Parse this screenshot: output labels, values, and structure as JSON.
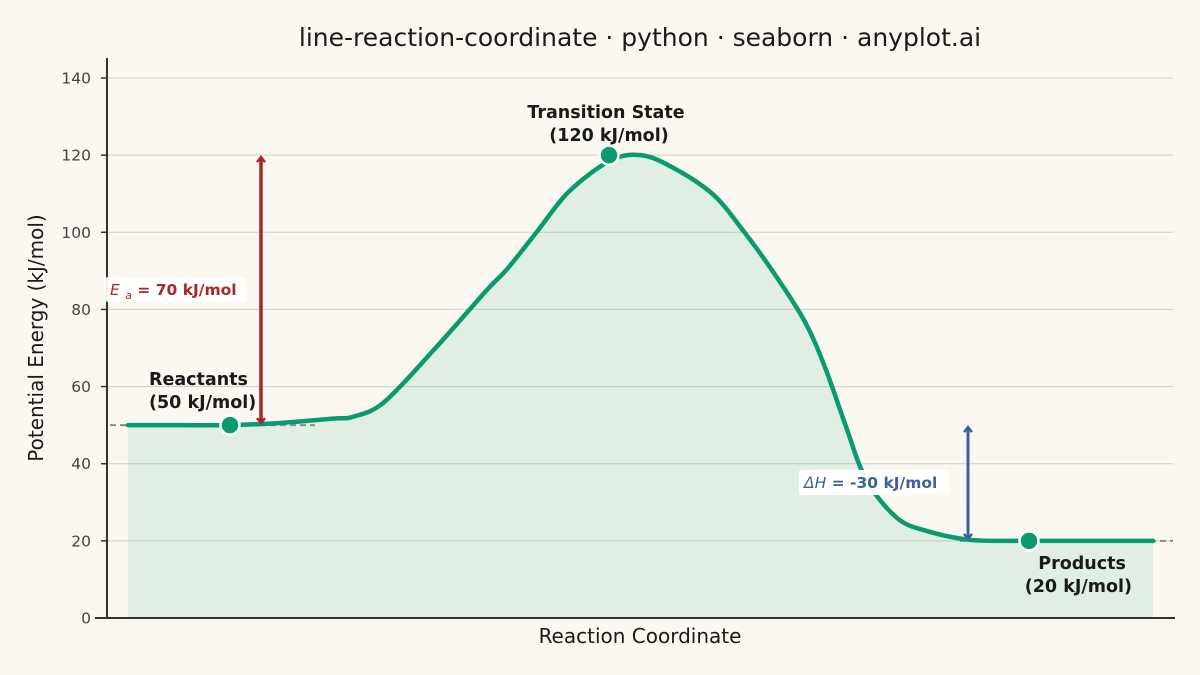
{
  "chart_data": {
    "type": "line",
    "title": "line-reaction-coordinate · python · seaborn · anyplot.ai",
    "xlabel": "Reaction Coordinate",
    "ylabel": "Potential Energy (kJ/mol)",
    "ylim": [
      0,
      145
    ],
    "yticks": [
      "0",
      "20",
      "40",
      "60",
      "80",
      "100",
      "120",
      "140"
    ],
    "grid": true,
    "series": [
      {
        "x": [
          0.0,
          0.05,
          0.1,
          0.15,
          0.2,
          0.22,
          0.25,
          0.3,
          0.35,
          0.37,
          0.4,
          0.43,
          0.47,
          0.5,
          0.53,
          0.57,
          0.6,
          0.63,
          0.66,
          0.68,
          0.7,
          0.72,
          0.75,
          0.78,
          0.82,
          0.86,
          0.9,
          0.95,
          1.0
        ],
        "values": [
          50,
          50,
          50,
          50.6,
          51.7,
          52.2,
          56,
          70,
          85,
          90.5,
          100.5,
          110.5,
          118.5,
          120,
          117,
          110,
          100.5,
          89.5,
          77,
          65,
          50,
          36,
          26,
          22.5,
          20.3,
          20,
          20,
          20,
          20
        ],
        "color": "#0A9A6F"
      }
    ],
    "points": [
      {
        "name": "Reactants",
        "x": 0.1,
        "y": 50
      },
      {
        "name": "Transition State",
        "x": 0.47,
        "y": 120
      },
      {
        "name": "Products",
        "x": 0.86,
        "y": 20
      }
    ],
    "reference_levels": [
      50,
      20
    ],
    "arrows": [
      {
        "name": "activation-energy",
        "x": 0.127,
        "from": 50,
        "to": 120,
        "color": "#A6282D"
      },
      {
        "name": "enthalpy-change",
        "x": 0.8,
        "from": 50,
        "to": 20,
        "color": "#3F5F9E"
      }
    ],
    "colors": {
      "line": "#0A9A6F",
      "fill": "#0A9A6F",
      "ea": "#A6282D",
      "dh": "#3F5F9E",
      "grid": "#CFCFCF",
      "axis": "#333333",
      "ref": "#8A8A8A",
      "background": "#FAF8F1"
    }
  },
  "labels": {
    "reactants_line1": "Reactants",
    "reactants_line2": "(50 kJ/mol)",
    "ts_line1": "Transition State",
    "ts_line2": "(120 kJ/mol)",
    "products_line1": "Products",
    "products_line2": "(20 kJ/mol)",
    "ea_symbol": "E",
    "ea_subscript": "a",
    "ea_value": " = 70 kJ/mol",
    "dh_symbol": "ΔH",
    "dh_value": " = -30 kJ/mol"
  }
}
